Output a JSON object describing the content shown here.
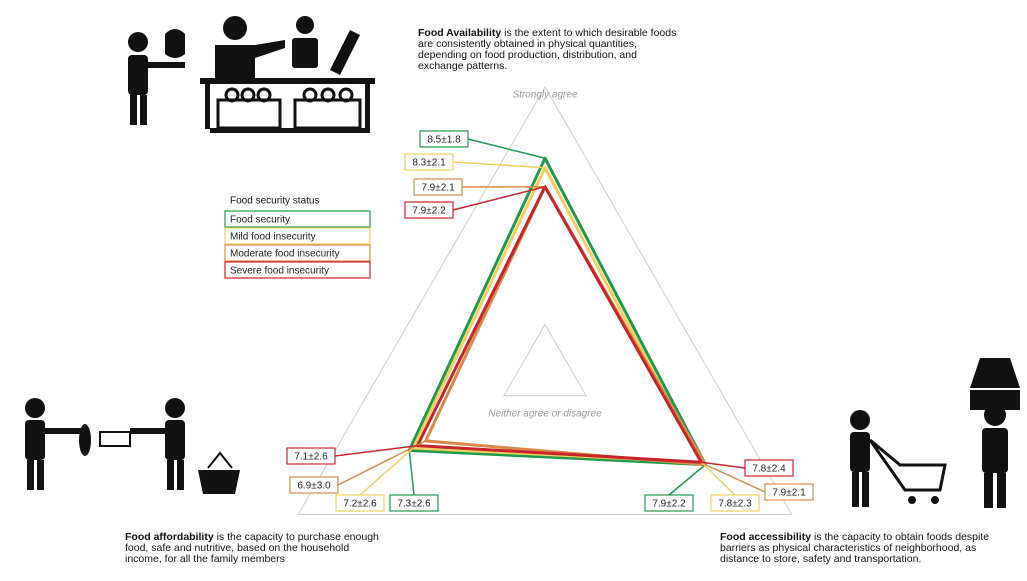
{
  "chart_data": {
    "type": "radar",
    "axes": [
      {
        "name": "Food Availability",
        "description": "is the extent to which desirable foods are consistently obtained in physical quantities, depending on food production, distribution, and exchange patterns."
      },
      {
        "name": "Food affordability",
        "description": "is the capacity to purchase enough food, safe and nutritive, based on the household income, for all the family members"
      },
      {
        "name": "Food accessibility",
        "description": "is the capacity to obtain foods despite barriers as physical characteristics of neighborhood, as distance to store, safety and transportation."
      }
    ],
    "legend_title": "Food security status",
    "series": [
      {
        "name": "Food security",
        "color": "#1f9a4c",
        "values": [
          8.5,
          7.3,
          7.9
        ],
        "value_labels": [
          "8.5±1.8",
          "7.3±2.6",
          "7.9±2.2"
        ]
      },
      {
        "name": "Mild food insecurity",
        "color": "#f0d060",
        "values": [
          8.3,
          7.2,
          7.8
        ],
        "value_labels": [
          "8.3±2.1",
          "7.2±2.6",
          "7.8±2.3"
        ]
      },
      {
        "name": "Moderate food insecurity",
        "color": "#d98a4a",
        "values": [
          7.9,
          6.9,
          7.9
        ],
        "value_labels": [
          "7.9±2.1",
          "6.9±3.0",
          "7.9±2.1"
        ]
      },
      {
        "name": "Severe food insecurity",
        "color": "#c8242b",
        "values": [
          7.9,
          7.1,
          7.8
        ],
        "value_labels": [
          "7.9±2.2",
          "7.1±2.6",
          "7.8±2.4"
        ]
      }
    ],
    "rlim": [
      4,
      10
    ],
    "rticks": [
      {
        "value": 5,
        "label": "Neither agree or disagree"
      },
      {
        "value": 10,
        "label": "Strongly agree"
      }
    ]
  }
}
